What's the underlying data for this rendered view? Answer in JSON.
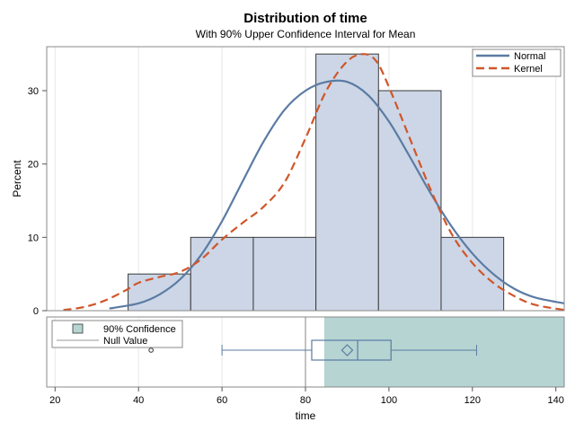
{
  "chart_data": {
    "type": "bar",
    "title": "Distribution of time",
    "subtitle": "With 90% Upper Confidence Interval for Mean",
    "xlabel": "time",
    "ylabel": "Percent",
    "xlim": [
      18,
      142
    ],
    "ylim": [
      0,
      36
    ],
    "x_ticks": [
      20,
      40,
      60,
      80,
      100,
      120,
      140
    ],
    "y_ticks": [
      0,
      10,
      20,
      30
    ],
    "grid": true,
    "histogram": {
      "bin_edges": [
        37.5,
        52.5,
        67.5,
        82.5,
        97.5,
        112.5,
        127.5
      ],
      "values": [
        5,
        10,
        10,
        35,
        30,
        10
      ]
    },
    "series": [
      {
        "name": "Normal",
        "style": "solid",
        "color": "#5b7ba3",
        "x": [
          33,
          40,
          45,
          50,
          55,
          60,
          65,
          70,
          75,
          80,
          85,
          90,
          95,
          100,
          105,
          110,
          115,
          120,
          125,
          130,
          135,
          142
        ],
        "y": [
          0.3,
          1.0,
          2.2,
          4.3,
          7.6,
          12.2,
          17.7,
          23.1,
          27.4,
          30.0,
          31.2,
          31.2,
          29.4,
          25.8,
          21.0,
          16.0,
          11.5,
          7.8,
          5.0,
          3.0,
          1.8,
          1.0
        ]
      },
      {
        "name": "Kernel",
        "style": "dashed",
        "color": "#d0562a",
        "x": [
          22,
          27,
          32,
          37,
          40,
          45,
          50,
          55,
          60,
          65,
          70,
          75,
          80,
          85,
          90,
          94,
          97,
          100,
          105,
          110,
          115,
          120,
          125,
          130,
          135,
          142
        ],
        "y": [
          0.1,
          0.5,
          1.4,
          2.8,
          3.8,
          4.6,
          5.3,
          7.0,
          9.7,
          12.0,
          14.2,
          17.5,
          23.5,
          30.0,
          34.0,
          35.0,
          34.0,
          30.5,
          23.5,
          16.5,
          10.5,
          6.5,
          3.8,
          2.0,
          0.8,
          0.1
        ]
      }
    ],
    "legend": {
      "position": "top-right",
      "entries": [
        "Normal",
        "Kernel"
      ]
    },
    "boxplot": {
      "whisker_low": 60,
      "q1": 81.5,
      "median": 92.5,
      "q3": 100.5,
      "whisker_high": 121,
      "mean": 90,
      "outliers": [
        43
      ],
      "confidence_lower": 84.5,
      "confidence_upper": 142,
      "null_value": 80,
      "legend": {
        "position": "top-left",
        "entries": [
          "90% Confidence",
          "Null Value"
        ]
      }
    },
    "colors": {
      "bar_fill": "#ccd6e6",
      "bar_stroke": "#3a3a3a",
      "normal": "#5b7ba3",
      "kernel": "#d0562a",
      "confidence_fill": "#b5d4d2",
      "box": "#5b7ba3",
      "grid": "#e6e6e6",
      "null_line": "#9a9a9a"
    }
  }
}
